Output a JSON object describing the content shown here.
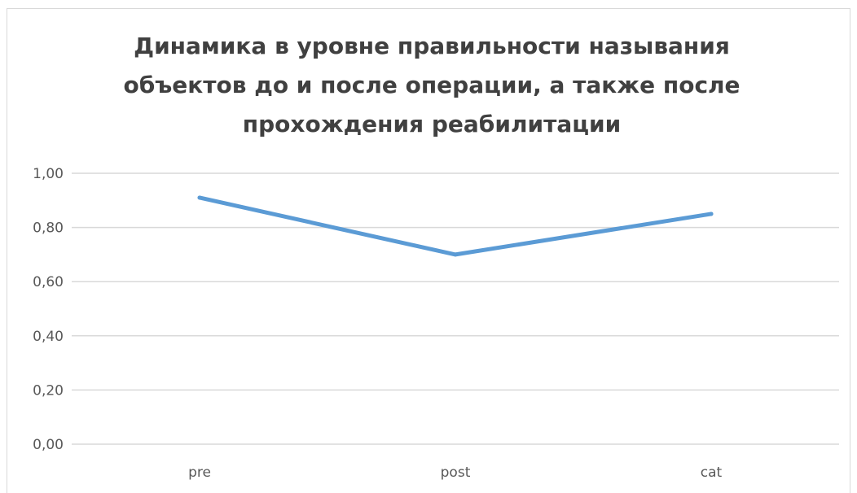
{
  "chart_data": {
    "type": "line",
    "title": "Динамика в уровне правильности называния объектов до и после операции, а также после прохождения реабилитации",
    "categories": [
      "pre",
      "post",
      "cat"
    ],
    "series": [
      {
        "values": [
          0.91,
          0.7,
          0.85
        ]
      }
    ],
    "y_tick_labels": [
      "0,00",
      "0,20",
      "0,40",
      "0,60",
      "0,80",
      "1,00"
    ],
    "xlabel": "",
    "ylabel": "",
    "ylim": [
      0,
      1
    ],
    "grid": true,
    "legend": "none",
    "colors": {
      "line": "#5b9bd5",
      "grid": "#d9d9d9",
      "text": "#595959",
      "title": "#404040"
    }
  }
}
